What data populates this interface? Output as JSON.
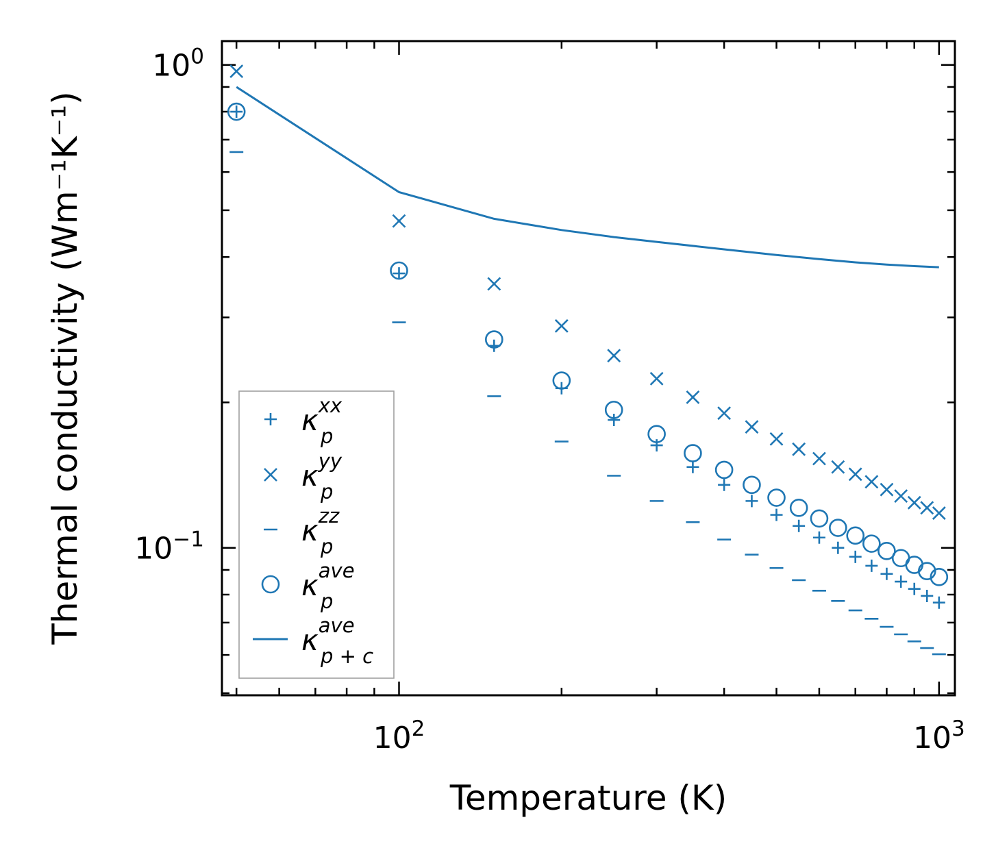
{
  "chart_data": {
    "type": "scatter",
    "title": "",
    "xlabel": "Temperature (K)",
    "ylabel": "Thermal conductivity (Wm⁻¹K⁻¹)",
    "xscale": "log",
    "yscale": "log",
    "xlim": [
      47,
      1070
    ],
    "ylim": [
      0.0495,
      1.12
    ],
    "x_ticks": [
      {
        "value": 100,
        "base": "10",
        "exp": "2"
      },
      {
        "value": 1000,
        "base": "10",
        "exp": "3"
      }
    ],
    "y_ticks": [
      {
        "value": 0.1,
        "base": "10",
        "exp": "−1"
      },
      {
        "value": 1,
        "base": "10",
        "exp": "0"
      }
    ],
    "legend_position": "lower-left",
    "x": [
      50,
      100,
      150,
      200,
      250,
      300,
      350,
      400,
      450,
      500,
      550,
      600,
      650,
      700,
      750,
      800,
      850,
      900,
      950,
      1000
    ],
    "series": [
      {
        "name": "κ_p^xx",
        "base": "κ",
        "sub": "p",
        "sup": "xx",
        "marker": "plus",
        "values": [
          0.8,
          0.37,
          0.262,
          0.214,
          0.184,
          0.163,
          0.147,
          0.135,
          0.125,
          0.117,
          0.111,
          0.105,
          0.1,
          0.0958,
          0.0918,
          0.0883,
          0.0851,
          0.0822,
          0.0795,
          0.077
        ]
      },
      {
        "name": "κ_p^yy",
        "base": "κ",
        "sub": "p",
        "sup": "yy",
        "marker": "x",
        "values": [
          0.97,
          0.475,
          0.352,
          0.288,
          0.25,
          0.224,
          0.205,
          0.19,
          0.178,
          0.168,
          0.16,
          0.153,
          0.147,
          0.142,
          0.137,
          0.132,
          0.128,
          0.124,
          0.121,
          0.118
        ]
      },
      {
        "name": "κ_p^zz",
        "base": "κ",
        "sub": "p",
        "sup": "zz",
        "marker": "hline",
        "values": [
          0.66,
          0.293,
          0.206,
          0.166,
          0.141,
          0.125,
          0.113,
          0.104,
          0.0968,
          0.0908,
          0.0857,
          0.0815,
          0.0776,
          0.0742,
          0.0713,
          0.0686,
          0.0662,
          0.064,
          0.062,
          0.0602
        ]
      },
      {
        "name": "κ_p^ave",
        "base": "κ",
        "sub": "p",
        "sup": "ave",
        "marker": "circle",
        "values": [
          0.8,
          0.375,
          0.27,
          0.222,
          0.193,
          0.172,
          0.157,
          0.145,
          0.135,
          0.127,
          0.121,
          0.115,
          0.11,
          0.106,
          0.102,
          0.0985,
          0.0952,
          0.0922,
          0.0895,
          0.087
        ]
      },
      {
        "name": "κ_{p+c}^ave",
        "base": "κ",
        "sub": "p + c",
        "sup": "ave",
        "marker": "line",
        "x": [
          50,
          100,
          150,
          200,
          250,
          300,
          400,
          500,
          600,
          700,
          800,
          900,
          1000
        ],
        "values": [
          0.9,
          0.545,
          0.48,
          0.455,
          0.44,
          0.43,
          0.415,
          0.404,
          0.396,
          0.39,
          0.386,
          0.383,
          0.381
        ]
      }
    ],
    "colors": {
      "series": "#1f77b4",
      "axes": "#000000",
      "legend_border": "#a0a0a0"
    }
  }
}
